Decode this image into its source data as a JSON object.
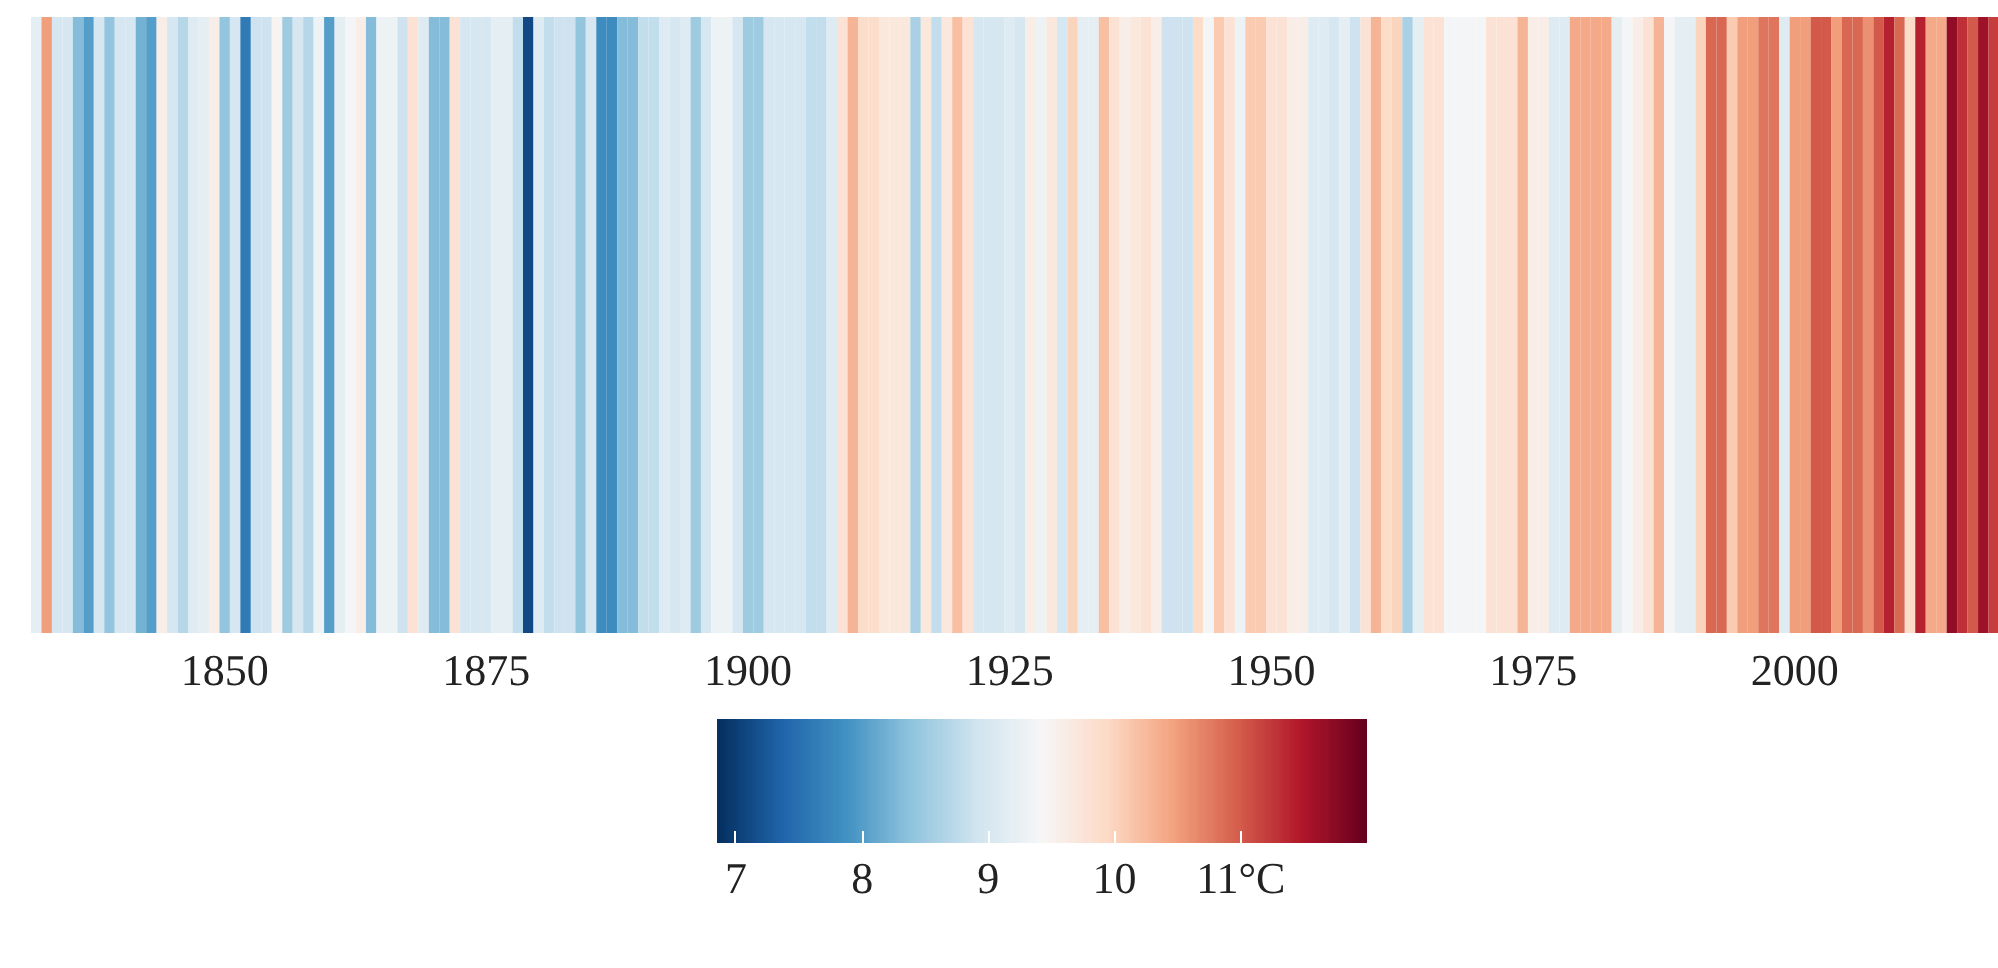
{
  "chart_data": {
    "type": "heatmap",
    "categories": [
      null,
      null,
      null,
      null,
      null,
      null,
      null,
      null,
      null,
      null,
      null,
      null,
      null,
      null,
      null,
      null,
      null,
      null,
      "1850",
      null,
      null,
      null,
      null,
      null,
      null,
      null,
      null,
      null,
      null,
      null,
      null,
      null,
      null,
      null,
      null,
      null,
      null,
      null,
      null,
      null,
      null,
      null,
      null,
      "1875",
      null,
      null,
      null,
      null,
      null,
      null,
      null,
      null,
      null,
      null,
      null,
      null,
      null,
      null,
      null,
      null,
      null,
      null,
      null,
      null,
      null,
      null,
      null,
      null,
      "1900",
      null,
      null,
      null,
      null,
      null,
      null,
      null,
      null,
      null,
      null,
      null,
      null,
      null,
      null,
      null,
      null,
      null,
      null,
      null,
      null,
      null,
      null,
      null,
      null,
      "1925",
      null,
      null,
      null,
      null,
      null,
      null,
      null,
      null,
      null,
      null,
      null,
      null,
      null,
      null,
      null,
      null,
      null,
      null,
      null,
      null,
      null,
      null,
      null,
      null,
      "1950",
      null,
      null,
      null,
      null,
      null,
      null,
      null,
      null,
      null,
      null,
      null,
      null,
      null,
      null,
      null,
      null,
      null,
      null,
      null,
      null,
      null,
      null,
      null,
      null,
      "1975",
      null,
      null,
      null,
      null,
      null,
      null,
      null,
      null,
      null,
      null,
      null,
      null,
      null,
      null,
      null,
      null,
      null,
      null,
      null,
      null,
      null,
      null,
      null,
      null,
      "2000",
      null,
      null,
      null,
      null,
      null,
      null,
      null,
      null,
      null,
      null,
      null,
      null,
      null,
      null,
      null,
      null,
      null,
      null,
      null
    ],
    "cells": [
      [
        9.2,
        10.5,
        9.0,
        9.0,
        8.3,
        8.0,
        9.0,
        8.4,
        9.0,
        9.0,
        8.2,
        8.0,
        9.6,
        9.0,
        8.7,
        9.1,
        9.2,
        9.6,
        8.4,
        9.0,
        7.6,
        8.9,
        8.9,
        9.5,
        8.5,
        9.0,
        8.7,
        9.3,
        8.0,
        9.2,
        9.4,
        9.6,
        8.3,
        9.3,
        9.3,
        8.9,
        9.8,
        9.1,
        8.3,
        8.3,
        9.8,
        9.0,
        9.0,
        9.0,
        9.2,
        9.2,
        8.8,
        7.1,
        9.1,
        8.8,
        8.9,
        8.9,
        8.4,
        9.0,
        7.8,
        7.8,
        8.3,
        8.3,
        8.8,
        8.8,
        9.1,
        9.0,
        9.1,
        8.5,
        9.0,
        9.3,
        9.3,
        9.0,
        8.5,
        8.5,
        9.0,
        9.0,
        9.0,
        9.0,
        8.8,
        8.8,
        9.1,
        9.8,
        10.3,
        9.9,
        9.9,
        9.7,
        9.7,
        9.7,
        8.6,
        9.7,
        8.8,
        9.7,
        10.2,
        9.8,
        9.0,
        9.0,
        9.0,
        9.1,
        9.0,
        9.6,
        9.3,
        9.7,
        9.0,
        10.0,
        9.2,
        9.2,
        10.2,
        9.8,
        9.6,
        9.7,
        9.8,
        9.6,
        8.9,
        8.9,
        8.9,
        9.9,
        9.4,
        10.1,
        9.8,
        9.3,
        10.1,
        10.1,
        9.8,
        9.8,
        9.6,
        9.6,
        9.1,
        9.1,
        9.0,
        9.2,
        8.9,
        9.8,
        10.3,
        9.9,
        10.0,
        8.6,
        9.2,
        9.8,
        9.8,
        9.4,
        9.4,
        9.4,
        9.4,
        9.8,
        9.8,
        9.8,
        10.3,
        9.6,
        9.6,
        9.1,
        9.1,
        10.4,
        10.4,
        10.4,
        10.4,
        9.2,
        9.4,
        9.6,
        9.8,
        10.3,
        9.4,
        9.2,
        9.2,
        10.0,
        10.9,
        10.9,
        10.1,
        10.5,
        10.5,
        10.8,
        10.8,
        9.1,
        10.5,
        10.5,
        11.0,
        11.0,
        10.5,
        10.9,
        10.9,
        10.6,
        11.0,
        11.4,
        10.9,
        9.9,
        11.4,
        10.4,
        10.4,
        11.7,
        11.3,
        11.0,
        11.6,
        11.2
      ]
    ],
    "y_categories": [
      null
    ],
    "clim": [
      6.85,
      12.0
    ],
    "cticks": [
      {
        "value": 7,
        "label": "7"
      },
      {
        "value": 8,
        "label": "8"
      },
      {
        "value": 9,
        "label": "9"
      },
      {
        "value": 10,
        "label": "10"
      },
      {
        "value": 11,
        "label": "11°C"
      }
    ]
  }
}
